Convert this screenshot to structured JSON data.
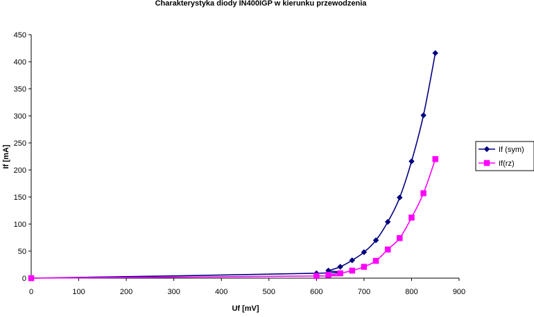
{
  "chart_data": {
    "type": "line",
    "title": "Charakterystyka diody IN400IGP w kierunku przewodzenia",
    "xlabel": "Uf [mV]",
    "ylabel": "If [mA]",
    "xlim": [
      0,
      900
    ],
    "ylim": [
      0,
      450
    ],
    "xticks": [
      0,
      100,
      200,
      300,
      400,
      500,
      600,
      700,
      800,
      900
    ],
    "yticks": [
      0,
      50,
      100,
      150,
      200,
      250,
      300,
      350,
      400,
      450
    ],
    "grid": false,
    "legend_position": "right",
    "series": [
      {
        "name": "If (sym)",
        "color": "#000080",
        "marker": "diamond",
        "x": [
          0,
          600,
          625,
          650,
          675,
          700,
          725,
          750,
          775,
          800,
          825,
          850
        ],
        "y": [
          0,
          9,
          14,
          21,
          33,
          48,
          70,
          104,
          149,
          216,
          301,
          416
        ],
        "extra_x": [],
        "extra_y": []
      },
      {
        "name": "If(rz)",
        "color": "#FF00FF",
        "marker": "square",
        "x": [
          0,
          600,
          625,
          650,
          675,
          700,
          725,
          750,
          775,
          800,
          825,
          850
        ],
        "y": [
          0,
          4,
          6,
          9,
          14,
          21,
          32,
          53,
          74,
          112,
          157,
          220
        ]
      }
    ]
  }
}
